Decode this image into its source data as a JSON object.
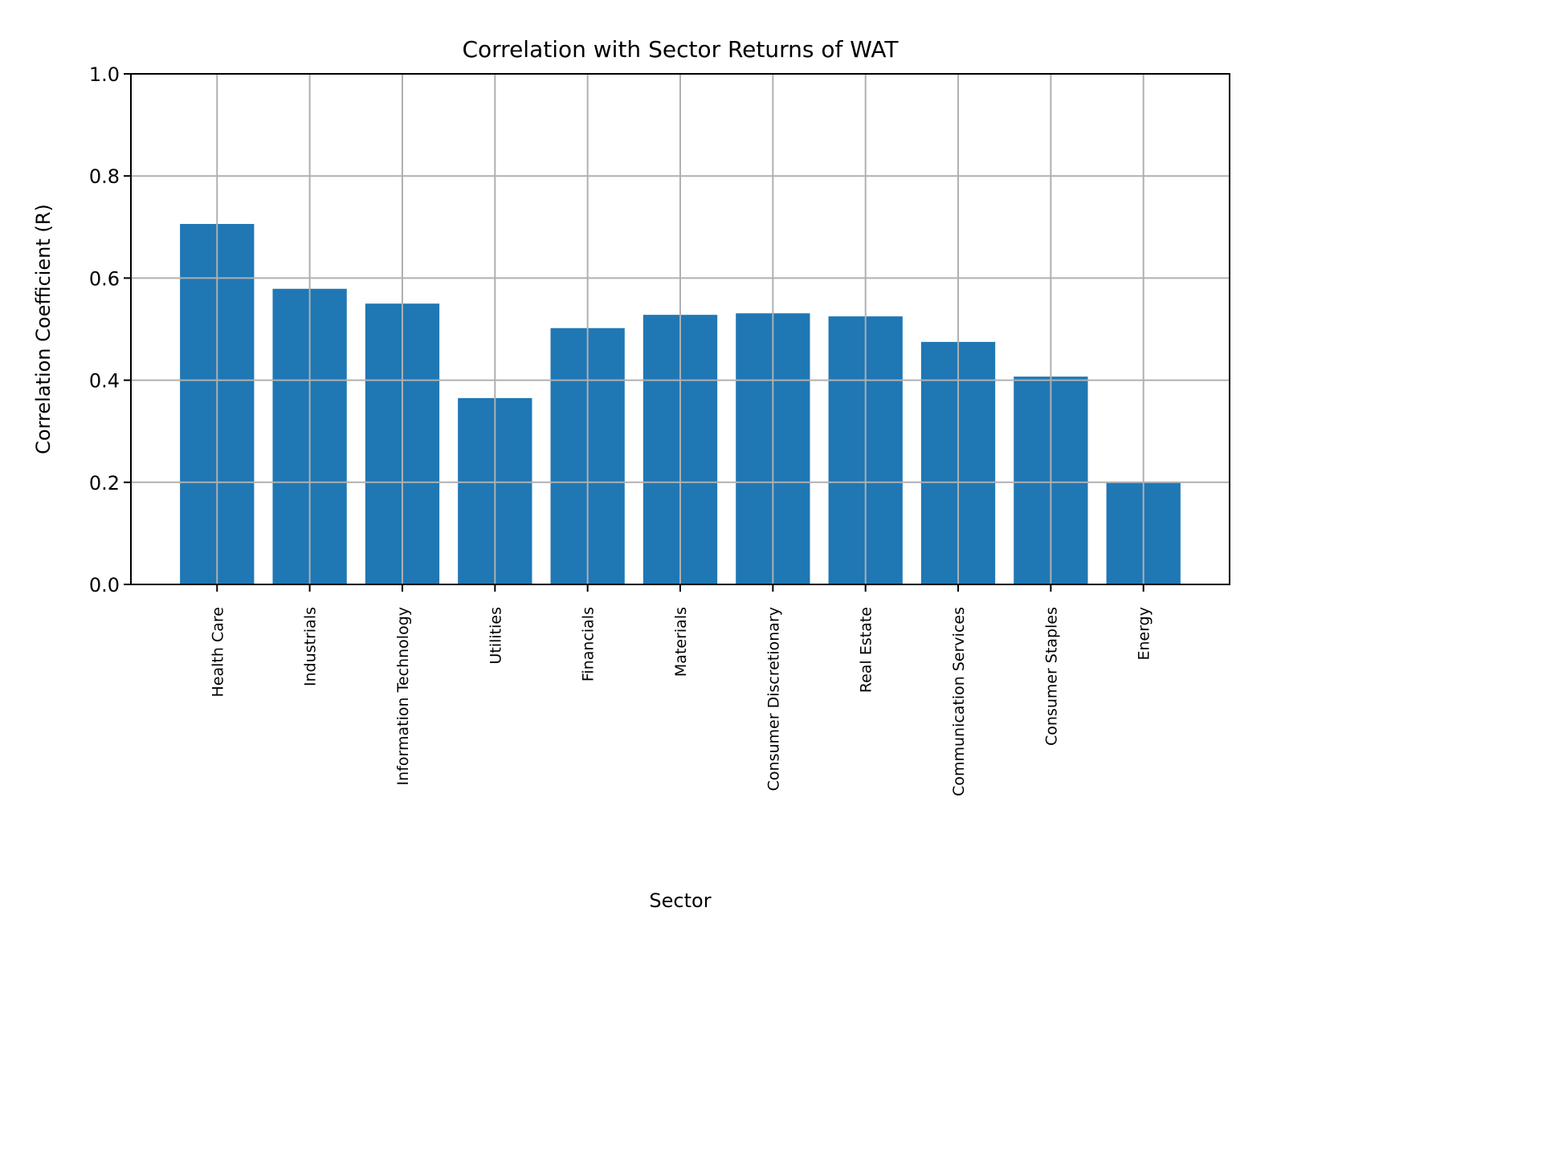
{
  "chart_data": {
    "type": "bar",
    "title": "Correlation with Sector Returns of WAT",
    "xlabel": "Sector",
    "ylabel": "Correlation Coefficient (R)",
    "categories": [
      "Health Care",
      "Industrials",
      "Information Technology",
      "Utilities",
      "Financials",
      "Materials",
      "Consumer Discretionary",
      "Real Estate",
      "Communication Services",
      "Consumer Staples",
      "Energy"
    ],
    "values": [
      0.706,
      0.579,
      0.55,
      0.365,
      0.502,
      0.528,
      0.531,
      0.525,
      0.475,
      0.407,
      0.2
    ],
    "ylim": [
      0,
      1.0
    ],
    "yticks": [
      "0.0",
      "0.2",
      "0.4",
      "0.6",
      "0.8",
      "1.0"
    ],
    "grid": true,
    "bar_color": "#1f77b4",
    "grid_color": "#b0b0b0"
  }
}
